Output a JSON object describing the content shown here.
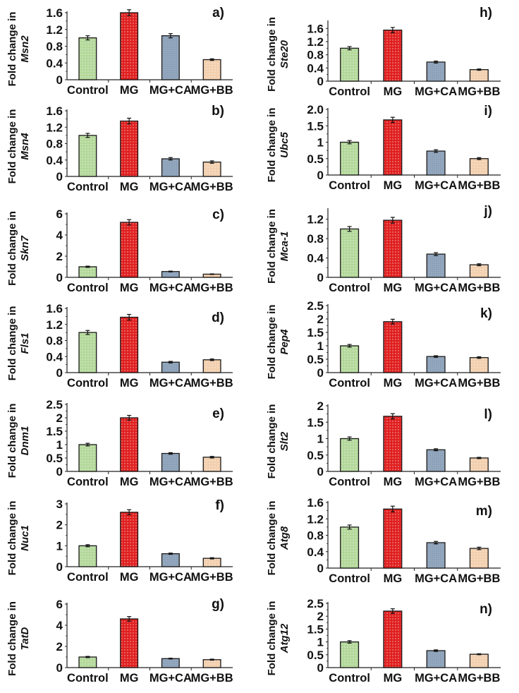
{
  "chart_data": [
    {
      "type": "bar",
      "panel": "a)",
      "gene": "Msn2",
      "ylabel": "Fold change in",
      "categories": [
        "Control",
        "MG",
        "MG+CA",
        "MG+BB"
      ],
      "values": [
        1.0,
        1.6,
        1.05,
        0.48
      ],
      "errors": [
        0.05,
        0.07,
        0.05,
        0.02
      ],
      "ylim": [
        0,
        1.6
      ],
      "yticks": [
        "0",
        "0.4",
        "0.8",
        "1.2",
        "1.6"
      ],
      "ytick_values": [
        0,
        0.4,
        0.8,
        1.2,
        1.6
      ]
    },
    {
      "type": "bar",
      "panel": "b)",
      "gene": "Msn4",
      "ylabel": "Fold change in",
      "categories": [
        "Control",
        "MG",
        "MG+CA",
        "MG+BB"
      ],
      "values": [
        1.0,
        1.35,
        0.43,
        0.35
      ],
      "errors": [
        0.05,
        0.07,
        0.03,
        0.03
      ],
      "ylim": [
        0,
        1.6
      ],
      "yticks": [
        "0",
        "0.4",
        "0.8",
        "1.2",
        "1.6"
      ],
      "ytick_values": [
        0,
        0.4,
        0.8,
        1.2,
        1.6
      ]
    },
    {
      "type": "bar",
      "panel": "c)",
      "gene": "Skn7",
      "ylabel": "Fold change in",
      "categories": [
        "Control",
        "MG",
        "MG+CA",
        "MG+BB"
      ],
      "values": [
        1.0,
        5.2,
        0.55,
        0.3
      ],
      "errors": [
        0.06,
        0.25,
        0.04,
        0.03
      ],
      "ylim": [
        0,
        6
      ],
      "yticks": [
        "0",
        "2",
        "4",
        "6"
      ],
      "ytick_values": [
        0,
        2,
        4,
        6
      ]
    },
    {
      "type": "bar",
      "panel": "d)",
      "gene": "Fls1",
      "ylabel": "Fold change in",
      "categories": [
        "Control",
        "MG",
        "MG+CA",
        "MG+BB"
      ],
      "values": [
        1.0,
        1.38,
        0.26,
        0.32
      ],
      "errors": [
        0.05,
        0.07,
        0.02,
        0.02
      ],
      "ylim": [
        0,
        1.6
      ],
      "yticks": [
        "0",
        "0.4",
        "0.8",
        "1.2",
        "1.6"
      ],
      "ytick_values": [
        0,
        0.4,
        0.8,
        1.2,
        1.6
      ]
    },
    {
      "type": "bar",
      "panel": "e)",
      "gene": "Dnm1",
      "ylabel": "Fold change in",
      "categories": [
        "Control",
        "MG",
        "MG+CA",
        "MG+BB"
      ],
      "values": [
        1.0,
        2.0,
        0.67,
        0.53
      ],
      "errors": [
        0.05,
        0.09,
        0.03,
        0.03
      ],
      "ylim": [
        0,
        2.5
      ],
      "yticks": [
        "0",
        "0.5",
        "1",
        "1.5",
        "2",
        "2.5"
      ],
      "ytick_values": [
        0,
        0.5,
        1,
        1.5,
        2,
        2.5
      ]
    },
    {
      "type": "bar",
      "panel": "f)",
      "gene": "Nuc1",
      "ylabel": "Fold change in",
      "categories": [
        "Control",
        "MG",
        "MG+CA",
        "MG+BB"
      ],
      "values": [
        1.0,
        2.6,
        0.62,
        0.4
      ],
      "errors": [
        0.05,
        0.12,
        0.03,
        0.03
      ],
      "ylim": [
        0,
        3
      ],
      "yticks": [
        "0",
        "1",
        "2",
        "3"
      ],
      "ytick_values": [
        0,
        1,
        2,
        3
      ]
    },
    {
      "type": "bar",
      "panel": "g)",
      "gene": "TatD",
      "ylabel": "Fold change in",
      "categories": [
        "Control",
        "MG",
        "MG+CA",
        "MG+BB"
      ],
      "values": [
        1.0,
        4.6,
        0.85,
        0.75
      ],
      "errors": [
        0.06,
        0.22,
        0.04,
        0.05
      ],
      "ylim": [
        0,
        6
      ],
      "yticks": [
        "0",
        "2",
        "4",
        "6"
      ],
      "ytick_values": [
        0,
        2,
        4,
        6
      ]
    },
    {
      "type": "bar",
      "panel": "h)",
      "gene": "Ste20",
      "ylabel": "Fold change in",
      "categories": [
        "Control",
        "MG",
        "MG+CA",
        "MG+BB"
      ],
      "values": [
        1.0,
        1.55,
        0.58,
        0.35
      ],
      "errors": [
        0.05,
        0.08,
        0.03,
        0.02
      ],
      "ylim": [
        0,
        1.8
      ],
      "yticks": [
        "0",
        "0.4",
        "0.8",
        "1.2",
        "1.6"
      ],
      "ytick_values": [
        0,
        0.4,
        0.8,
        1.2,
        1.6
      ]
    },
    {
      "type": "bar",
      "panel": "i)",
      "gene": "Ubc5",
      "ylabel": "Fold change in",
      "categories": [
        "Control",
        "MG",
        "MG+CA",
        "MG+BB"
      ],
      "values": [
        1.0,
        1.68,
        0.73,
        0.5
      ],
      "errors": [
        0.05,
        0.08,
        0.04,
        0.03
      ],
      "ylim": [
        0,
        2.0
      ],
      "yticks": [
        "0",
        "0.5",
        "1",
        "1.5",
        "2.0"
      ],
      "ytick_values": [
        0,
        0.5,
        1,
        1.5,
        2.0
      ]
    },
    {
      "type": "bar",
      "panel": "j)",
      "gene": "Mca-1",
      "ylabel": "Fold change in",
      "categories": [
        "Control",
        "MG",
        "MG+CA",
        "MG+BB"
      ],
      "values": [
        1.0,
        1.18,
        0.48,
        0.26
      ],
      "errors": [
        0.05,
        0.06,
        0.03,
        0.02
      ],
      "ylim": [
        0,
        1.4
      ],
      "yticks": [
        "0",
        "0.4",
        "0.8",
        "1.2"
      ],
      "ytick_values": [
        0,
        0.4,
        0.8,
        1.2
      ]
    },
    {
      "type": "bar",
      "panel": "k)",
      "gene": "Pep4",
      "ylabel": "Fold change in",
      "categories": [
        "Control",
        "MG",
        "MG+CA",
        "MG+BB"
      ],
      "values": [
        1.0,
        1.9,
        0.6,
        0.56
      ],
      "errors": [
        0.05,
        0.09,
        0.03,
        0.03
      ],
      "ylim": [
        0,
        2.5
      ],
      "yticks": [
        "0",
        "0.5",
        "1",
        "1.5",
        "2",
        "2.5"
      ],
      "ytick_values": [
        0,
        0.5,
        1,
        1.5,
        2,
        2.5
      ]
    },
    {
      "type": "bar",
      "panel": "l)",
      "gene": "Slt2",
      "ylabel": "Fold change in",
      "categories": [
        "Control",
        "MG",
        "MG+CA",
        "MG+BB"
      ],
      "values": [
        1.0,
        1.68,
        0.66,
        0.41
      ],
      "errors": [
        0.05,
        0.08,
        0.03,
        0.02
      ],
      "ylim": [
        0,
        2
      ],
      "yticks": [
        "0",
        "0.5",
        "1",
        "1.5",
        "2"
      ],
      "ytick_values": [
        0,
        0.5,
        1,
        1.5,
        2
      ]
    },
    {
      "type": "bar",
      "panel": "m)",
      "gene": "Atg8",
      "ylabel": "Fold change in",
      "categories": [
        "Control",
        "MG",
        "MG+CA",
        "MG+BB"
      ],
      "values": [
        1.0,
        1.44,
        0.62,
        0.48
      ],
      "errors": [
        0.05,
        0.07,
        0.03,
        0.03
      ],
      "ylim": [
        0,
        1.6
      ],
      "yticks": [
        "0",
        "0.4",
        "0.8",
        "1.2",
        "1.6"
      ],
      "ytick_values": [
        0,
        0.4,
        0.8,
        1.2,
        1.6
      ]
    },
    {
      "type": "bar",
      "panel": "n)",
      "gene": "Atg12",
      "ylabel": "Fold change in",
      "categories": [
        "Control",
        "MG",
        "MG+CA",
        "MG+BB"
      ],
      "values": [
        1.0,
        2.2,
        0.66,
        0.52
      ],
      "errors": [
        0.05,
        0.09,
        0.03,
        0.02
      ],
      "ylim": [
        0,
        2.5
      ],
      "yticks": [
        "0",
        "0.5",
        "1",
        "1.5",
        "2",
        "2.5"
      ],
      "ytick_values": [
        0,
        0.5,
        1,
        1.5,
        2,
        2.5
      ]
    }
  ],
  "colors": {
    "Control": "#b3d89a",
    "MG": "#e02020",
    "MG+CA": "#95a9c0",
    "MG+BB": "#f2cfae",
    "axis": "#222222"
  }
}
